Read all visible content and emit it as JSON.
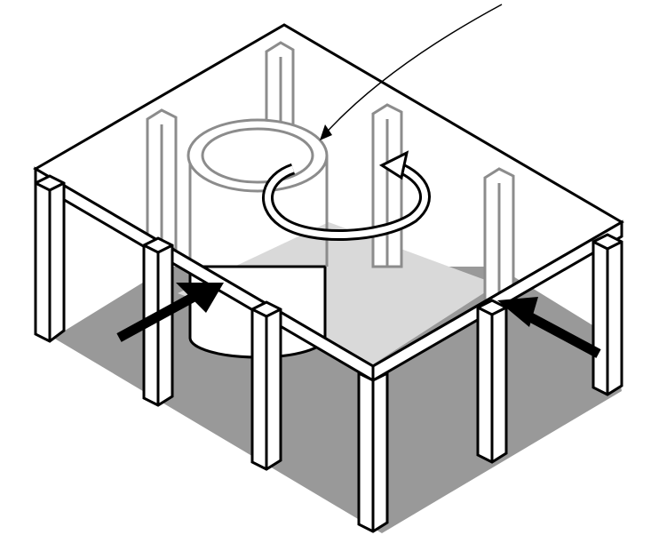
{
  "diagram": {
    "subject": "isometric-slab-on-columns-with-core-torsion",
    "colors": {
      "background": "#ffffff",
      "shadow": "#999999",
      "shadow_light": "#d9d9d9",
      "stroke": "#000000",
      "ghost_stroke": "#8c8c8c",
      "fill": "#ffffff",
      "arrow": "#000000"
    },
    "icons": [
      "leader-line",
      "rotation-arrow-icon",
      "force-arrow-icon"
    ]
  }
}
